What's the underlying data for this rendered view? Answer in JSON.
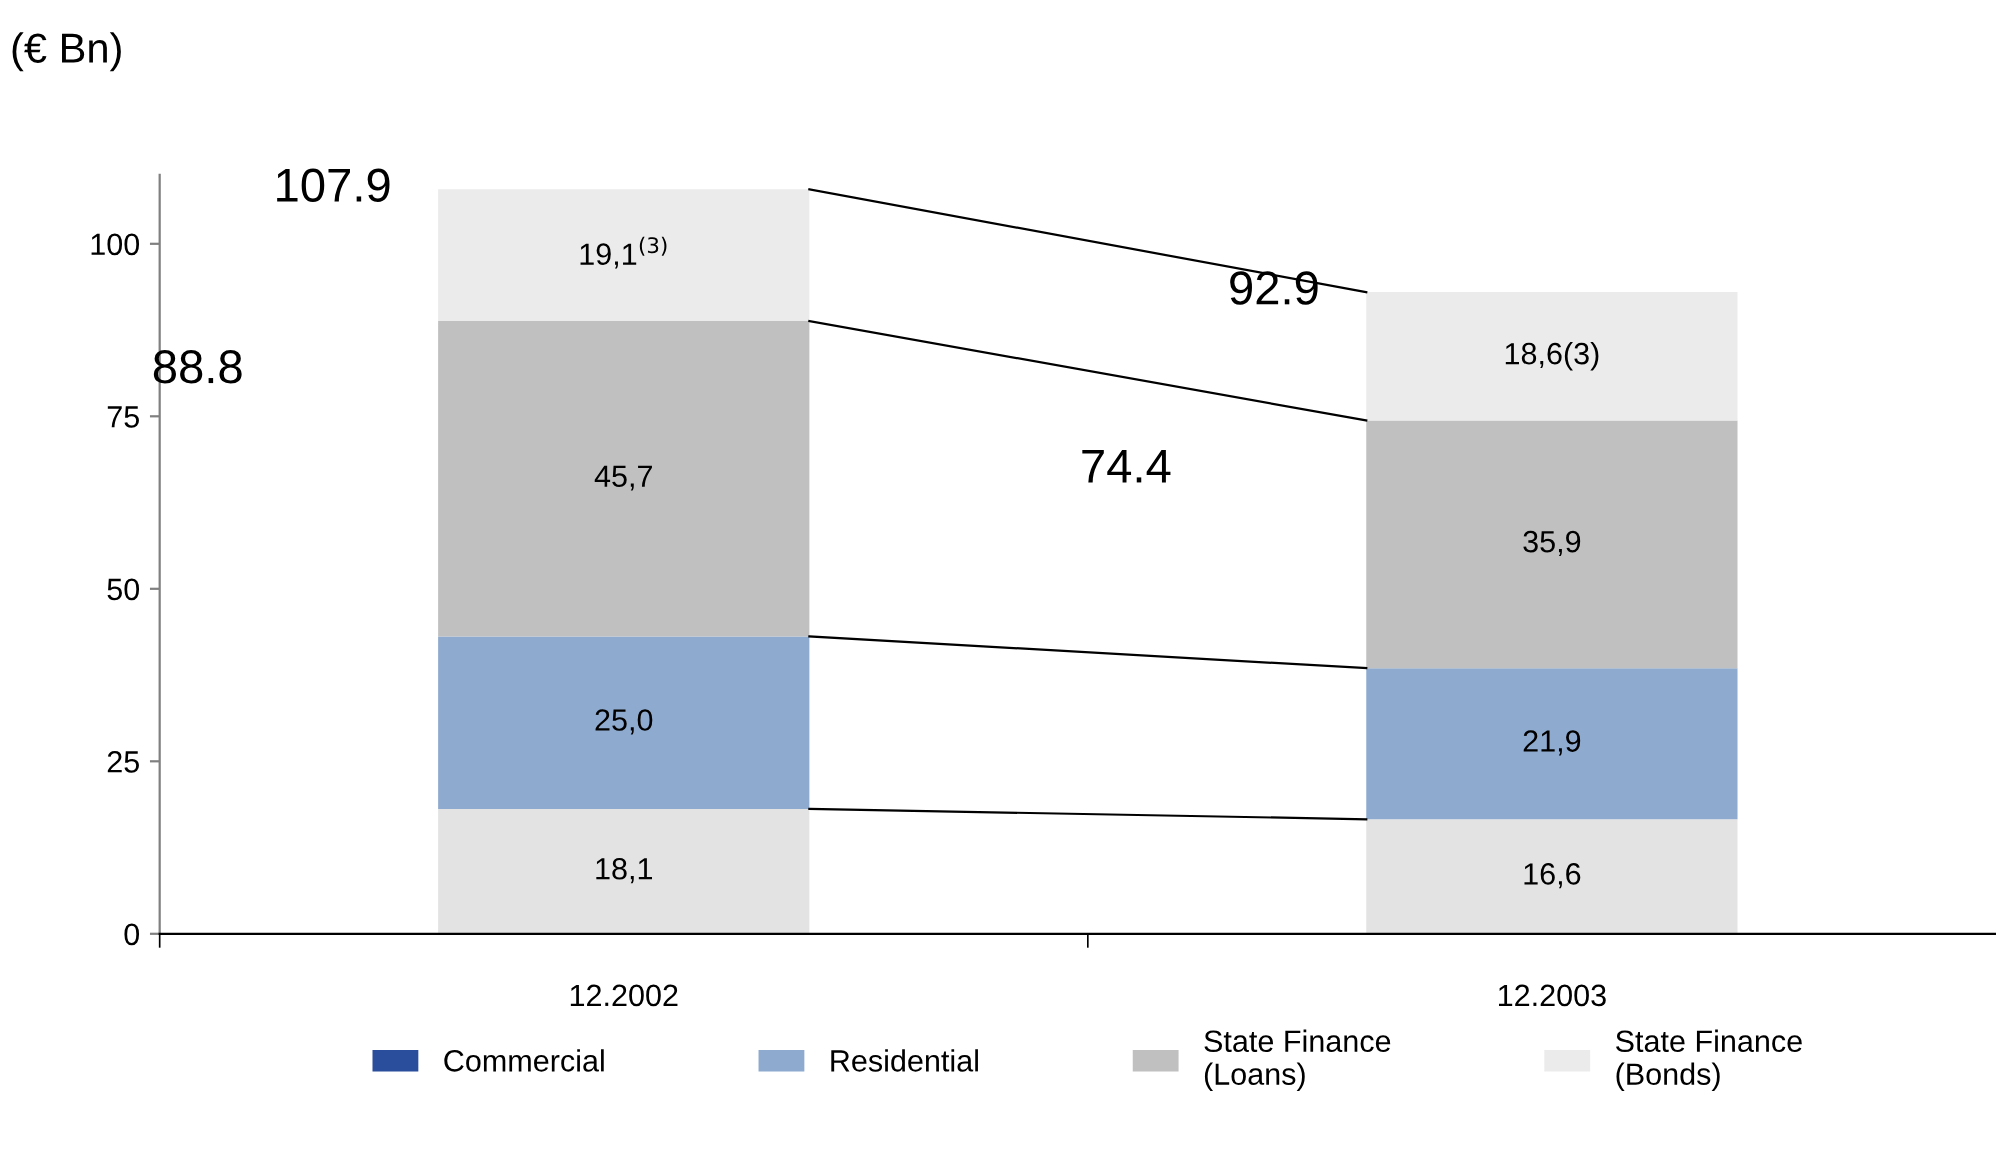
{
  "chart_data": {
    "type": "bar",
    "stacked": true,
    "ylabel": "(€ Bn)",
    "categories": [
      "12.2002",
      "12.2003"
    ],
    "series": [
      {
        "color": "#e3e3e3",
        "values": [
          18.1,
          16.6
        ],
        "value_labels": [
          "18,1",
          "16,6"
        ]
      },
      {
        "name": "Commercial",
        "color": "#2a4d9c",
        "values": [
          null,
          null
        ]
      },
      {
        "name": "Residential",
        "color": "#8eaacf",
        "values": [
          25.0,
          21.9
        ],
        "value_labels": [
          "25,0",
          "21,9"
        ]
      },
      {
        "name": "State Finance\n(Loans)",
        "color": "#c0c0c0",
        "values": [
          45.7,
          35.9
        ],
        "value_labels": [
          "45,7",
          "35,9"
        ]
      },
      {
        "name": "State Finance\n(Bonds)",
        "color": "#ebebeb",
        "values": [
          19.1,
          18.6
        ],
        "value_labels": [
          "19,1$^{(3)}$",
          "18,6(3)"
        ]
      }
    ],
    "totals": [
      "107.9",
      "92.9"
    ],
    "annotations": [
      "88.8",
      "74.4"
    ],
    "ylim": [
      0,
      110
    ],
    "yticks": [
      0,
      25,
      50,
      75,
      100
    ],
    "grid": false,
    "legend": "bottom"
  }
}
